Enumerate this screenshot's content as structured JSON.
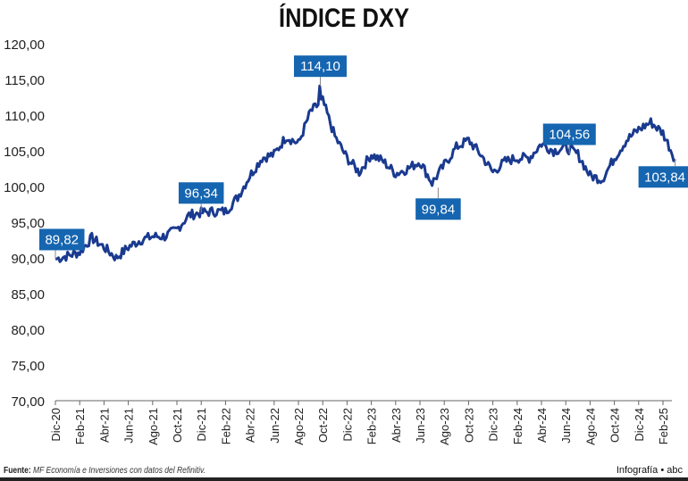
{
  "chart_data": {
    "type": "line",
    "title": "ÍNDICE DXY",
    "xlabel": "",
    "ylabel": "",
    "ylim": [
      70,
      120
    ],
    "yticks": [
      "70,00",
      "75,00",
      "80,00",
      "85,00",
      "90,00",
      "95,00",
      "100,00",
      "105,00",
      "110,00",
      "115,00",
      "120,00"
    ],
    "xticks": [
      "Dic-20",
      "Feb-21",
      "Abr-21",
      "Jun-21",
      "Ago-21",
      "Oct-21",
      "Dic-21",
      "Feb-22",
      "Abr-22",
      "Jun-22",
      "Ago-22",
      "Oct-22",
      "Dic-22",
      "Feb-23",
      "Abr-23",
      "Jun-23",
      "Ago-23",
      "Oct-23",
      "Dic-23",
      "Feb-24",
      "Abr-24",
      "Jun-24",
      "Ago-24",
      "Oct-24",
      "Dic-24",
      "Feb-25"
    ],
    "grid": false,
    "line_color": "#1a3a8f",
    "label_color": "#1565b0",
    "series": [
      {
        "x": [
          "2020-12",
          "2021-01",
          "2021-02",
          "2021-03",
          "2021-04",
          "2021-05",
          "2021-06",
          "2021-07",
          "2021-08",
          "2021-09",
          "2021-10",
          "2021-11",
          "2021-12",
          "2022-01",
          "2022-02",
          "2022-03",
          "2022-04",
          "2022-05",
          "2022-06",
          "2022-07",
          "2022-08",
          "2022-09",
          "2022-10",
          "2022-11",
          "2022-12",
          "2023-01",
          "2023-02",
          "2023-03",
          "2023-04",
          "2023-05",
          "2023-06",
          "2023-07",
          "2023-08",
          "2023-09",
          "2023-10",
          "2023-11",
          "2023-12",
          "2024-01",
          "2024-02",
          "2024-03",
          "2024-04",
          "2024-05",
          "2024-06",
          "2024-07",
          "2024-08",
          "2024-09",
          "2024-10",
          "2024-11",
          "2024-12",
          "2025-01",
          "2025-02",
          "2025-03"
        ],
        "values": [
          89.82,
          90.3,
          90.8,
          92.8,
          91.5,
          90.0,
          91.5,
          92.5,
          93.0,
          93.0,
          94.0,
          96.0,
          96.34,
          96.5,
          96.5,
          98.5,
          101.5,
          104.0,
          104.5,
          107.0,
          106.0,
          110.5,
          112.0,
          107.0,
          104.0,
          102.0,
          104.5,
          103.5,
          101.8,
          102.5,
          103.5,
          100.5,
          103.0,
          105.5,
          106.5,
          104.5,
          102.0,
          103.5,
          104.0,
          104.0,
          106.0,
          105.0,
          105.5,
          104.5,
          101.5,
          101.0,
          104.0,
          106.5,
          108.0,
          109.0,
          107.5,
          103.84
        ]
      }
    ],
    "annotations": [
      {
        "x": "2020-12",
        "value": 89.82,
        "text": "89,82"
      },
      {
        "x": "2021-12",
        "value": 96.34,
        "text": "96,34"
      },
      {
        "x": "2022-09.8",
        "value": 114.1,
        "text": "114,10"
      },
      {
        "x": "2023-07.5",
        "value": 99.84,
        "text": "99,84"
      },
      {
        "x": "2024-06.3",
        "value": 104.56,
        "text": "104,56"
      },
      {
        "x": "2025-03",
        "value": 103.84,
        "text": "103,84"
      }
    ]
  },
  "footer": {
    "source_label": "Fuente:",
    "source_text": "MF Economía e Inversiones con datos del Refinitiv.",
    "credit": "Infografía • abc"
  }
}
